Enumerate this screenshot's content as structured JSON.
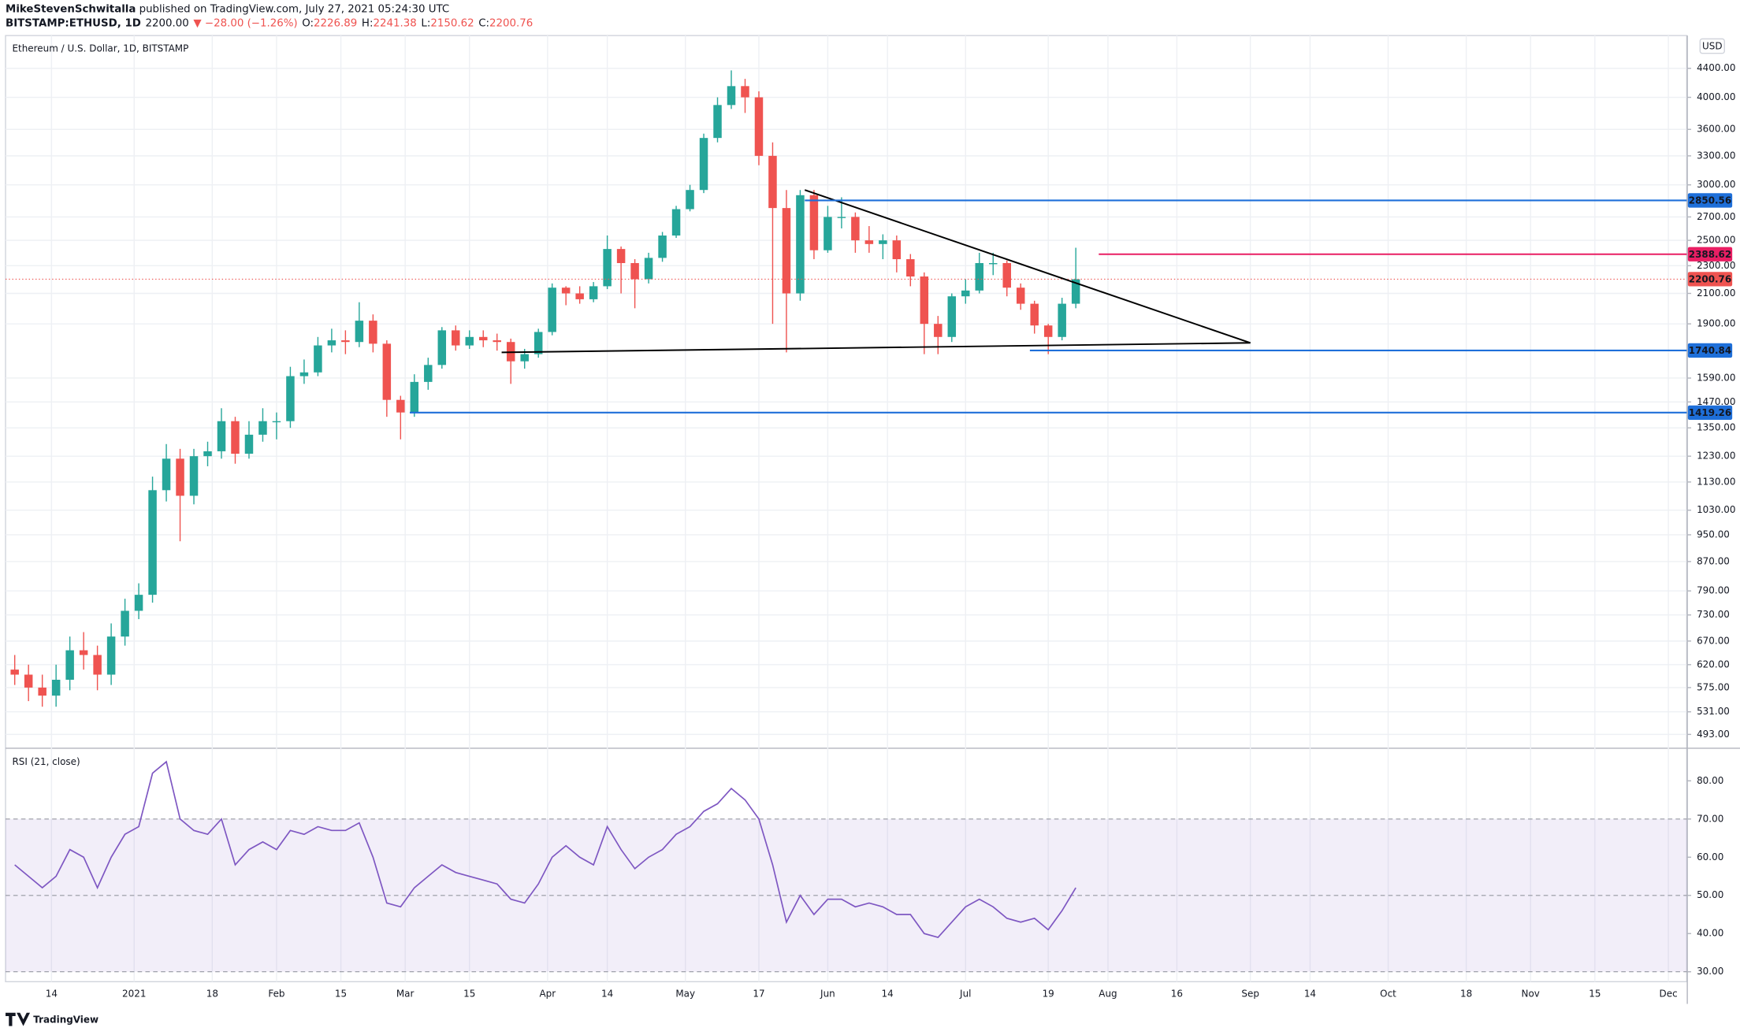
{
  "header": {
    "author": "MikeStevenSchwitalla",
    "published": "published on TradingView.com, July 27, 2021 05:24:30 UTC",
    "symbol": "BITSTAMP:ETHUSD, 1D",
    "price": "2200.00",
    "change": "▼ −28.00 (−1.26%)",
    "ohlc": [
      {
        "label": "O:",
        "value": "2226.89"
      },
      {
        "label": "H:",
        "value": "2241.38"
      },
      {
        "label": "L:",
        "value": "2150.62"
      },
      {
        "label": "C:",
        "value": "2200.76"
      }
    ]
  },
  "footer": "TradingView",
  "chart_data": [
    {
      "type": "candlestick",
      "title": "Ethereum / U.S. Dollar, 1D, BITSTAMP",
      "currency": "USD",
      "x": [
        "2020-12-06",
        "2020-12-09",
        "2020-12-12",
        "2020-12-15",
        "2020-12-18",
        "2020-12-21",
        "2020-12-24",
        "2020-12-27",
        "2020-12-30",
        "2021-01-02",
        "2021-01-05",
        "2021-01-08",
        "2021-01-11",
        "2021-01-14",
        "2021-01-17",
        "2021-01-20",
        "2021-01-23",
        "2021-01-26",
        "2021-01-29",
        "2021-02-01",
        "2021-02-04",
        "2021-02-07",
        "2021-02-10",
        "2021-02-13",
        "2021-02-16",
        "2021-02-19",
        "2021-02-22",
        "2021-02-25",
        "2021-02-28",
        "2021-03-03",
        "2021-03-06",
        "2021-03-09",
        "2021-03-12",
        "2021-03-15",
        "2021-03-18",
        "2021-03-21",
        "2021-03-24",
        "2021-03-27",
        "2021-03-30",
        "2021-04-02",
        "2021-04-05",
        "2021-04-08",
        "2021-04-11",
        "2021-04-14",
        "2021-04-17",
        "2021-04-20",
        "2021-04-23",
        "2021-04-26",
        "2021-04-29",
        "2021-05-02",
        "2021-05-05",
        "2021-05-08",
        "2021-05-11",
        "2021-05-14",
        "2021-05-17",
        "2021-05-20",
        "2021-05-23",
        "2021-05-26",
        "2021-05-29",
        "2021-06-01",
        "2021-06-04",
        "2021-06-07",
        "2021-06-10",
        "2021-06-13",
        "2021-06-16",
        "2021-06-19",
        "2021-06-22",
        "2021-06-25",
        "2021-06-28",
        "2021-07-01",
        "2021-07-04",
        "2021-07-07",
        "2021-07-10",
        "2021-07-13",
        "2021-07-16",
        "2021-07-19",
        "2021-07-22",
        "2021-07-25"
      ],
      "open": [
        610,
        600,
        575,
        560,
        590,
        650,
        640,
        600,
        680,
        740,
        780,
        1100,
        1220,
        1080,
        1230,
        1250,
        1380,
        1240,
        1320,
        1380,
        1380,
        1600,
        1620,
        1770,
        1800,
        1790,
        1920,
        1780,
        1480,
        1420,
        1570,
        1660,
        1860,
        1770,
        1820,
        1800,
        1790,
        1680,
        1720,
        1850,
        2140,
        2100,
        2060,
        2150,
        2430,
        2320,
        2200,
        2360,
        2540,
        2770,
        2950,
        3500,
        3900,
        4150,
        4000,
        3300,
        2780,
        2100,
        2900,
        2420,
        2700,
        2700,
        2500,
        2470,
        2500,
        2350,
        2220,
        1900,
        1820,
        2080,
        2120,
        2320,
        2320,
        2140,
        2030,
        1890,
        1820,
        2030
      ],
      "high": [
        640,
        620,
        600,
        620,
        680,
        690,
        660,
        710,
        770,
        810,
        1150,
        1280,
        1260,
        1260,
        1290,
        1440,
        1400,
        1380,
        1440,
        1420,
        1650,
        1690,
        1820,
        1870,
        1860,
        2040,
        1960,
        1800,
        1500,
        1610,
        1700,
        1880,
        1890,
        1860,
        1860,
        1840,
        1810,
        1750,
        1870,
        2170,
        2150,
        2150,
        2180,
        2540,
        2450,
        2350,
        2400,
        2570,
        2800,
        3000,
        3550,
        4000,
        4370,
        4250,
        4080,
        3450,
        2950,
        2950,
        2950,
        2800,
        2880,
        2740,
        2620,
        2550,
        2540,
        2390,
        2250,
        1950,
        2100,
        2200,
        2400,
        2400,
        2340,
        2170,
        2050,
        1900,
        2070,
        2440
      ],
      "low": [
        580,
        550,
        540,
        540,
        570,
        610,
        570,
        580,
        660,
        720,
        760,
        1060,
        930,
        1050,
        1190,
        1220,
        1200,
        1220,
        1290,
        1300,
        1350,
        1560,
        1600,
        1730,
        1720,
        1760,
        1730,
        1400,
        1300,
        1400,
        1530,
        1640,
        1740,
        1750,
        1760,
        1740,
        1560,
        1640,
        1700,
        1830,
        2020,
        2030,
        2040,
        2130,
        2100,
        2000,
        2170,
        2330,
        2520,
        2750,
        2920,
        3450,
        3850,
        3800,
        3200,
        1900,
        1730,
        2050,
        2350,
        2400,
        2600,
        2400,
        2400,
        2350,
        2250,
        2150,
        1720,
        1720,
        1790,
        2030,
        2100,
        2230,
        2080,
        1990,
        1840,
        1720,
        1800,
        2000
      ],
      "close": [
        600,
        575,
        560,
        590,
        650,
        640,
        600,
        680,
        740,
        780,
        1100,
        1220,
        1080,
        1230,
        1250,
        1380,
        1240,
        1320,
        1380,
        1380,
        1600,
        1620,
        1770,
        1800,
        1790,
        1920,
        1780,
        1480,
        1420,
        1570,
        1660,
        1860,
        1770,
        1820,
        1800,
        1790,
        1680,
        1720,
        1850,
        2140,
        2100,
        2060,
        2150,
        2430,
        2320,
        2200,
        2360,
        2540,
        2770,
        2950,
        3500,
        3900,
        4150,
        4000,
        3300,
        2780,
        2100,
        2900,
        2420,
        2700,
        2700,
        2500,
        2470,
        2500,
        2350,
        2220,
        1900,
        1820,
        2080,
        2120,
        2320,
        2320,
        2140,
        2030,
        1890,
        1820,
        2030,
        2200
      ],
      "up_color": "#26a69a",
      "down_color": "#ef5350",
      "xlim": [
        "2020-12-04",
        "2021-12-05"
      ],
      "ylim": [
        472,
        4900
      ],
      "log_scale": true,
      "grid": true,
      "xticks": [
        {
          "value": "2020-12-14",
          "label": "14"
        },
        {
          "value": "2021-01-01",
          "label": "2021"
        },
        {
          "value": "2021-01-18",
          "label": "18"
        },
        {
          "value": "2021-02-01",
          "label": "Feb"
        },
        {
          "value": "2021-02-15",
          "label": "15"
        },
        {
          "value": "2021-03-01",
          "label": "Mar"
        },
        {
          "value": "2021-03-15",
          "label": "15"
        },
        {
          "value": "2021-04-01",
          "label": "Apr"
        },
        {
          "value": "2021-04-14",
          "label": "14"
        },
        {
          "value": "2021-05-01",
          "label": "May"
        },
        {
          "value": "2021-05-17",
          "label": "17"
        },
        {
          "value": "2021-06-01",
          "label": "Jun"
        },
        {
          "value": "2021-06-14",
          "label": "14"
        },
        {
          "value": "2021-07-01",
          "label": "Jul"
        },
        {
          "value": "2021-07-19",
          "label": "19"
        },
        {
          "value": "2021-08-01",
          "label": "Aug"
        },
        {
          "value": "2021-08-16",
          "label": "16"
        },
        {
          "value": "2021-09-01",
          "label": "Sep"
        },
        {
          "value": "2021-09-14",
          "label": "14"
        },
        {
          "value": "2021-10-01",
          "label": "Oct"
        },
        {
          "value": "2021-10-18",
          "label": "18"
        },
        {
          "value": "2021-11-01",
          "label": "Nov"
        },
        {
          "value": "2021-11-15",
          "label": "15"
        },
        {
          "value": "2021-12-01",
          "label": "Dec"
        }
      ],
      "yticks": [
        {
          "value": 4400,
          "label": "4400.00"
        },
        {
          "value": 4000,
          "label": "4000.00"
        },
        {
          "value": 3600,
          "label": "3600.00"
        },
        {
          "value": 3300,
          "label": "3300.00"
        },
        {
          "value": 3000,
          "label": "3000.00"
        },
        {
          "value": 2700,
          "label": "2700.00"
        },
        {
          "value": 2500,
          "label": "2500.00"
        },
        {
          "value": 2300,
          "label": "2300.00"
        },
        {
          "value": 2100,
          "label": "2100.00"
        },
        {
          "value": 1900,
          "label": "1900.00"
        },
        {
          "value": 1590,
          "label": "1590.00"
        },
        {
          "value": 1470,
          "label": "1470.00"
        },
        {
          "value": 1350,
          "label": "1350.00"
        },
        {
          "value": 1230,
          "label": "1230.00"
        },
        {
          "value": 1130,
          "label": "1130.00"
        },
        {
          "value": 1030,
          "label": "1030.00"
        },
        {
          "value": 950,
          "label": "950.00"
        },
        {
          "value": 870,
          "label": "870.00"
        },
        {
          "value": 790,
          "label": "790.00"
        },
        {
          "value": 730,
          "label": "730.00"
        },
        {
          "value": 670,
          "label": "670.00"
        },
        {
          "value": 620,
          "label": "620.00"
        },
        {
          "value": 575,
          "label": "575.00"
        },
        {
          "value": 531,
          "label": "531.00"
        },
        {
          "value": 493,
          "label": "493.00"
        }
      ],
      "levels": [
        {
          "value": 2850.56,
          "color": "#1e6fd9",
          "start": "2021-05-27"
        },
        {
          "value": 2388.62,
          "color": "#e91e63",
          "start": "2021-07-30"
        },
        {
          "value": 1740.84,
          "color": "#1e6fd9",
          "start": "2021-07-15"
        },
        {
          "value": 1419.26,
          "color": "#1e6fd9",
          "start": "2021-03-02"
        }
      ],
      "last_price": {
        "value": 2200.76,
        "color": "#ef5350"
      },
      "trendlines": [
        {
          "x": [
            "2021-05-27",
            "2021-09-01"
          ],
          "values": [
            2950,
            1785
          ]
        },
        {
          "x": [
            "2021-03-22",
            "2021-09-01"
          ],
          "values": [
            1730,
            1785
          ]
        }
      ]
    },
    {
      "type": "line",
      "title": "RSI (21, close)",
      "series": [
        {
          "color": "#7e57c2",
          "values": [
            58,
            55,
            52,
            55,
            62,
            60,
            52,
            60,
            66,
            68,
            82,
            85,
            70,
            67,
            66,
            70,
            58,
            62,
            64,
            62,
            67,
            66,
            68,
            67,
            67,
            69,
            60,
            48,
            47,
            52,
            55,
            58,
            56,
            55,
            54,
            53,
            49,
            48,
            53,
            60,
            63,
            60,
            58,
            68,
            62,
            57,
            60,
            62,
            66,
            68,
            72,
            74,
            78,
            75,
            70,
            58,
            43,
            50,
            45,
            49,
            49,
            47,
            48,
            47,
            45,
            45,
            40,
            39,
            43,
            47,
            49,
            47,
            44,
            43,
            44,
            41,
            46,
            52
          ]
        }
      ],
      "ylim": [
        27.4,
        88.4
      ],
      "yticks": [
        {
          "value": 80,
          "label": "80.00"
        },
        {
          "value": 70,
          "label": "70.00"
        },
        {
          "value": 60,
          "label": "60.00"
        },
        {
          "value": 50,
          "label": "50.00"
        },
        {
          "value": 40,
          "label": "40.00"
        },
        {
          "value": 30,
          "label": "30.00"
        }
      ],
      "band": [
        30,
        70
      ],
      "band_color": "#7e57c2",
      "hlines": [
        70,
        50,
        30
      ]
    }
  ]
}
